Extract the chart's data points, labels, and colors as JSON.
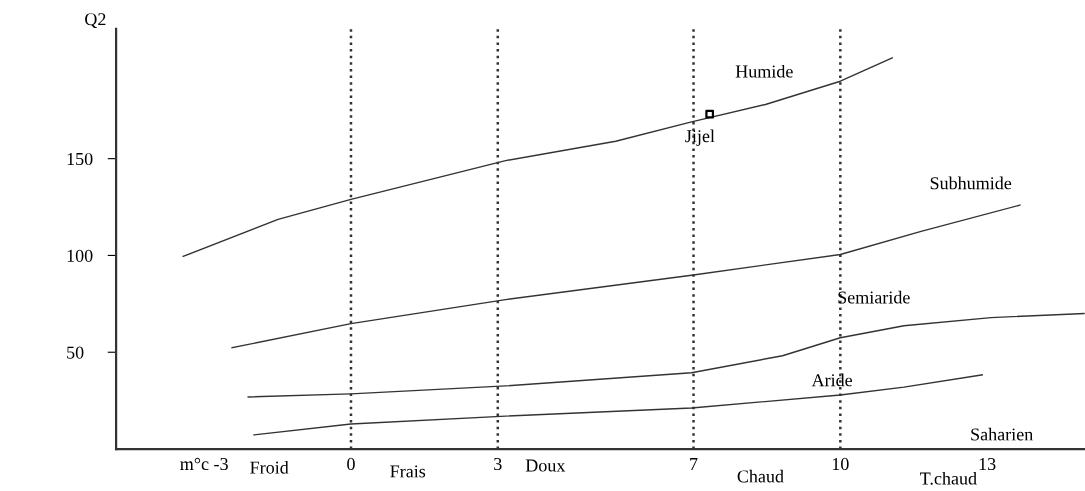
{
  "chart_data": {
    "type": "line",
    "ylabel": "Q2",
    "xlim": [
      -4.8,
      15
    ],
    "ylim": [
      0,
      217
    ],
    "xticks": [
      {
        "value": -3,
        "label": "m°c -3"
      },
      0,
      3,
      7,
      10,
      13
    ],
    "yticks": [
      50,
      100,
      150
    ],
    "grid": false,
    "legend": false,
    "marker": "none",
    "line_style": "solid",
    "series": [
      {
        "color": "#333333",
        "x": [
          -3.43,
          -1.49,
          0,
          3.16,
          5.41,
          6.96,
          8.47,
          10.0,
          11.06
        ],
        "values": [
          99.5,
          118.6,
          129,
          149,
          159,
          169,
          178,
          190,
          202
        ]
      },
      {
        "color": "#333333",
        "x": [
          -2.43,
          0,
          3.16,
          6.96,
          10.0,
          11.65,
          13.67
        ],
        "values": [
          52.3,
          64.8,
          77.2,
          89.8,
          100.5,
          112.4,
          126
        ]
      },
      {
        "color": "#333333",
        "x": [
          -2.1,
          0,
          3.16,
          6.96,
          8.82,
          10.0,
          11.3,
          13.08,
          14.98
        ],
        "values": [
          26.9,
          28.5,
          32.6,
          39.4,
          48.2,
          57.5,
          63.7,
          67.9,
          70
        ]
      },
      {
        "color": "#333333",
        "x": [
          -1.98,
          0,
          3.16,
          6.96,
          10.0,
          11.3,
          12.9
        ],
        "values": [
          7.3,
          12.9,
          17,
          21.2,
          27.9,
          32,
          38.3
        ]
      },
      {
        "type": "scatter",
        "name": "Jijel",
        "color": "#000000",
        "marker": "square",
        "x": [
          7.33
        ],
        "values": [
          173
        ]
      }
    ],
    "ref_lines": [
      {
        "axis": "x",
        "value": 0,
        "color": "#333333",
        "line_style": "dotted"
      },
      {
        "axis": "x",
        "value": 3,
        "color": "#333333",
        "line_style": "dotted"
      },
      {
        "axis": "x",
        "value": 7,
        "color": "#333333",
        "line_style": "dotted"
      },
      {
        "axis": "x",
        "value": 10,
        "color": "#333333",
        "line_style": "dotted"
      }
    ],
    "annotations": [
      "Humide",
      "Subhumide",
      "Semiaride",
      "Aride",
      "Saharien",
      "Froid",
      "Frais",
      "Doux",
      "Chaud",
      "T.chaud"
    ]
  }
}
